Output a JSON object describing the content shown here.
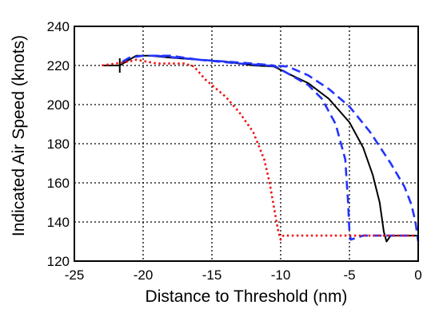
{
  "chart_data": {
    "type": "line",
    "title": "",
    "xlabel": "Distance to Threshold (nm)",
    "ylabel": "Indicated Air Speed (knots)",
    "xlim": [
      -25,
      0
    ],
    "ylim": [
      120,
      240
    ],
    "x_ticks": [
      "-25",
      "-20",
      "-15",
      "-10",
      "-5",
      "0"
    ],
    "y_ticks": [
      "120",
      "140",
      "160",
      "180",
      "200",
      "220",
      "240"
    ],
    "grid": true,
    "legend": "none",
    "series": [
      {
        "color": "#000000",
        "style": "solid",
        "points": [
          [
            -23,
            220
          ],
          [
            -21.7,
            220
          ],
          [
            -21,
            223
          ],
          [
            -20.5,
            225
          ],
          [
            -19.5,
            225
          ],
          [
            -18,
            224
          ],
          [
            -16,
            223
          ],
          [
            -14,
            222
          ],
          [
            -12,
            220
          ],
          [
            -10.5,
            219.5
          ],
          [
            -9.5,
            216
          ],
          [
            -8,
            211
          ],
          [
            -6.5,
            203
          ],
          [
            -5,
            191
          ],
          [
            -4,
            178
          ],
          [
            -3.3,
            164
          ],
          [
            -2.8,
            150
          ],
          [
            -2.5,
            135
          ],
          [
            -2.3,
            130
          ],
          [
            -2.0,
            133
          ],
          [
            -1.0,
            133
          ],
          [
            0,
            133
          ]
        ]
      },
      {
        "color": "#2233ff",
        "style": "dashed",
        "points": [
          [
            -21.5,
            222
          ],
          [
            -21,
            224
          ],
          [
            -20,
            225
          ],
          [
            -18,
            225
          ],
          [
            -16,
            223
          ],
          [
            -14,
            222
          ],
          [
            -12,
            221
          ],
          [
            -10.5,
            220
          ],
          [
            -9.5,
            216
          ],
          [
            -8,
            210
          ],
          [
            -7,
            203
          ],
          [
            -6,
            190
          ],
          [
            -5.3,
            172
          ],
          [
            -5.1,
            150
          ],
          [
            -5.0,
            135
          ],
          [
            -4.9,
            131
          ],
          [
            -4,
            133
          ],
          [
            -0.5,
            133
          ]
        ]
      },
      {
        "color": "#2233ff",
        "style": "dashed",
        "points": [
          [
            -19,
            225
          ],
          [
            -16,
            223
          ],
          [
            -13,
            221
          ],
          [
            -11,
            220
          ],
          [
            -9.5,
            219.5
          ],
          [
            -8,
            215
          ],
          [
            -6.5,
            208
          ],
          [
            -5,
            199
          ],
          [
            -3.5,
            186
          ],
          [
            -2,
            170
          ],
          [
            -1,
            158
          ],
          [
            -0.5,
            149
          ],
          [
            -0.2,
            140
          ],
          [
            0,
            130
          ]
        ]
      },
      {
        "color": "#ee1111",
        "style": "dotted",
        "points": [
          [
            -23,
            220
          ],
          [
            -21,
            222
          ],
          [
            -20.5,
            223
          ],
          [
            -19,
            221
          ],
          [
            -17,
            221
          ],
          [
            -16.3,
            219.5
          ],
          [
            -15.5,
            213
          ],
          [
            -14,
            204
          ],
          [
            -13,
            196
          ],
          [
            -12,
            186
          ],
          [
            -11.2,
            172
          ],
          [
            -10.8,
            160
          ],
          [
            -10.5,
            148
          ],
          [
            -10.2,
            136
          ],
          [
            -10.0,
            131
          ],
          [
            -9.8,
            133
          ],
          [
            -2,
            133
          ],
          [
            -0.3,
            133
          ]
        ]
      }
    ]
  }
}
